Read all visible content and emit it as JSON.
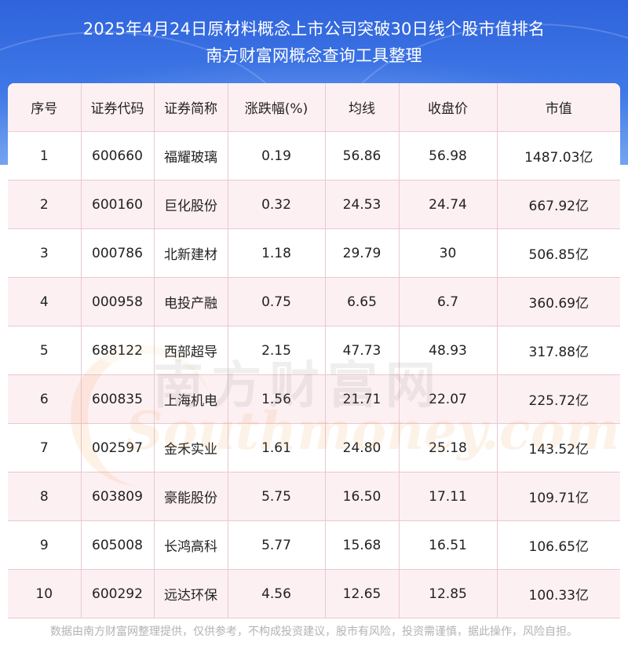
{
  "header": {
    "title_line1": "2025年4月24日原材料概念上市公司突破30日线个股市值排名",
    "title_line2": "南方财富网概念查询工具整理"
  },
  "table": {
    "columns": [
      "序号",
      "证券代码",
      "证券简称",
      "涨跌幅(%)",
      "均线",
      "收盘价",
      "市值"
    ],
    "rows": [
      [
        "1",
        "600660",
        "福耀玻璃",
        "0.19",
        "56.86",
        "56.98",
        "1487.03亿"
      ],
      [
        "2",
        "600160",
        "巨化股份",
        "0.32",
        "24.53",
        "24.74",
        "667.92亿"
      ],
      [
        "3",
        "000786",
        "北新建材",
        "1.18",
        "29.79",
        "30",
        "506.85亿"
      ],
      [
        "4",
        "000958",
        "电投产融",
        "0.75",
        "6.65",
        "6.7",
        "360.69亿"
      ],
      [
        "5",
        "688122",
        "西部超导",
        "2.15",
        "47.73",
        "48.93",
        "317.88亿"
      ],
      [
        "6",
        "600835",
        "上海机电",
        "1.56",
        "21.71",
        "22.07",
        "225.72亿"
      ],
      [
        "7",
        "002597",
        "金禾实业",
        "1.61",
        "24.80",
        "25.18",
        "143.52亿"
      ],
      [
        "8",
        "603809",
        "豪能股份",
        "5.75",
        "16.50",
        "17.11",
        "109.71亿"
      ],
      [
        "9",
        "605008",
        "长鸿高科",
        "5.77",
        "15.68",
        "16.51",
        "106.65亿"
      ],
      [
        "10",
        "600292",
        "远达环保",
        "4.56",
        "12.65",
        "12.85",
        "100.33亿"
      ]
    ]
  },
  "watermark": {
    "cn": "南方财富网",
    "en": "Southmoney.com"
  },
  "footer": {
    "disclaimer": "数据由南方财富网整理提供，仅供参考，不构成投资建议，股市有风险，投资需谨慎，据此操作，风险自担。"
  },
  "colors": {
    "header_blue": "#3f78e6",
    "row_pink": "#fdf0f3",
    "border_pink": "#e9c8d2"
  }
}
